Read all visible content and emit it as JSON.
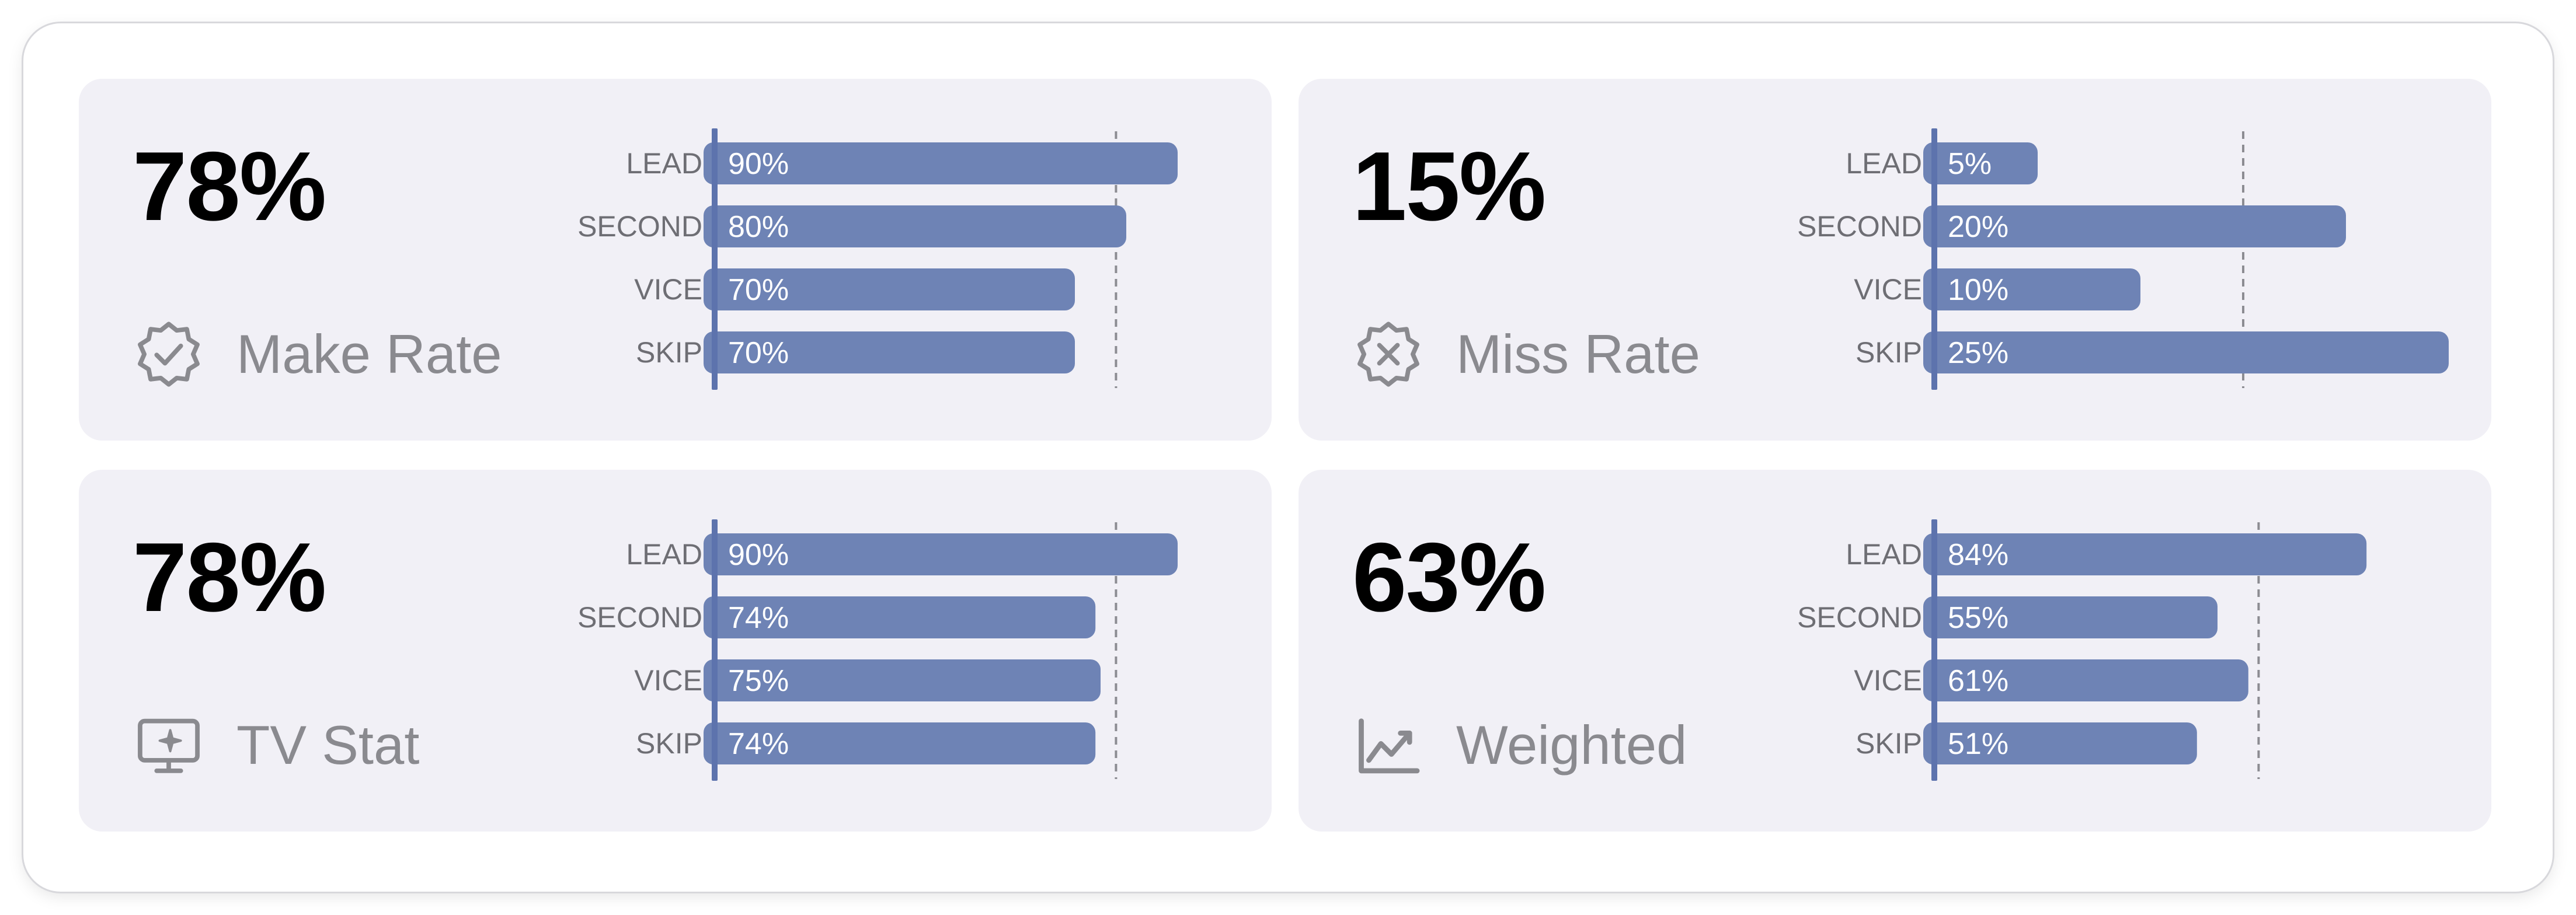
{
  "cards": [
    {
      "value": "78%",
      "label": "Make Rate",
      "icon": "badge-check-icon",
      "chart_data": {
        "type": "bar",
        "categories": [
          "LEAD",
          "SECOND",
          "VICE",
          "SKIP"
        ],
        "values": [
          90,
          80,
          70,
          70
        ],
        "value_labels": [
          "90%",
          "80%",
          "70%",
          "70%"
        ],
        "reference_line": 78,
        "xlim": [
          0,
          100
        ]
      }
    },
    {
      "value": "15%",
      "label": "Miss Rate",
      "icon": "badge-x-icon",
      "chart_data": {
        "type": "bar",
        "categories": [
          "LEAD",
          "SECOND",
          "VICE",
          "SKIP"
        ],
        "values": [
          5,
          20,
          10,
          25
        ],
        "value_labels": [
          "5%",
          "20%",
          "10%",
          "25%"
        ],
        "reference_line": 15,
        "xlim": [
          0,
          25
        ]
      }
    },
    {
      "value": "78%",
      "label": "TV Stat",
      "icon": "tv-sparkle-icon",
      "chart_data": {
        "type": "bar",
        "categories": [
          "LEAD",
          "SECOND",
          "VICE",
          "SKIP"
        ],
        "values": [
          90,
          74,
          75,
          74
        ],
        "value_labels": [
          "90%",
          "74%",
          "75%",
          "74%"
        ],
        "reference_line": 78,
        "xlim": [
          0,
          100
        ]
      }
    },
    {
      "value": "63%",
      "label": "Weighted",
      "icon": "trend-chart-icon",
      "chart_data": {
        "type": "bar",
        "categories": [
          "LEAD",
          "SECOND",
          "VICE",
          "SKIP"
        ],
        "values": [
          84,
          55,
          61,
          51
        ],
        "value_labels": [
          "84%",
          "55%",
          "61%",
          "51%"
        ],
        "reference_line": 63,
        "xlim": [
          0,
          100
        ]
      }
    }
  ],
  "colors": {
    "bar": "#6e83b5",
    "axis": "#5d73ad",
    "reference": "#8c8c92",
    "category_text": "#6e6e74",
    "bar_text": "#ffffff"
  }
}
